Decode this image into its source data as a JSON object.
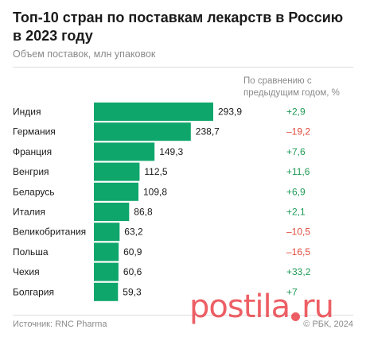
{
  "header": {
    "title": "Топ-10 стран по поставкам лекарств в Россию в 2023 году",
    "subtitle": "Объем поставок, млн упаковок"
  },
  "compare_header": "По сравнению с предыдущим годом, %",
  "footer": {
    "source": "Источник: RNC Pharma",
    "copyright": "© РБК, 2024"
  },
  "watermark": {
    "left": "postila",
    "right": "ru"
  },
  "colors": {
    "bar": "#0ea66b",
    "positive": "#1f9a55",
    "negative": "#e04a3c",
    "text": "#1a1a1a"
  },
  "chart_data": {
    "type": "bar",
    "orientation": "horizontal",
    "categories": [
      "Индия",
      "Германия",
      "Франция",
      "Венгрия",
      "Беларусь",
      "Италия",
      "Великобритания",
      "Польша",
      "Чехия",
      "Болгария"
    ],
    "values": [
      293.9,
      238.7,
      149.3,
      112.5,
      109.8,
      86.8,
      63.2,
      60.9,
      60.6,
      59.3
    ],
    "value_labels": [
      "293,9",
      "238,7",
      "149,3",
      "112,5",
      "109,8",
      "86,8",
      "63,2",
      "60,9",
      "60,6",
      "59,3"
    ],
    "change_labels": [
      "+2,9",
      "–19,2",
      "+7,6",
      "+11,6",
      "+6,9",
      "+2,1",
      "–10,5",
      "–16,5",
      "+33,2",
      "+7"
    ],
    "change_values": [
      2.9,
      -19.2,
      7.6,
      11.6,
      6.9,
      2.1,
      -10.5,
      -16.5,
      33.2,
      7
    ],
    "xlim": [
      0,
      293.9
    ],
    "grid": false,
    "legend": "none"
  }
}
